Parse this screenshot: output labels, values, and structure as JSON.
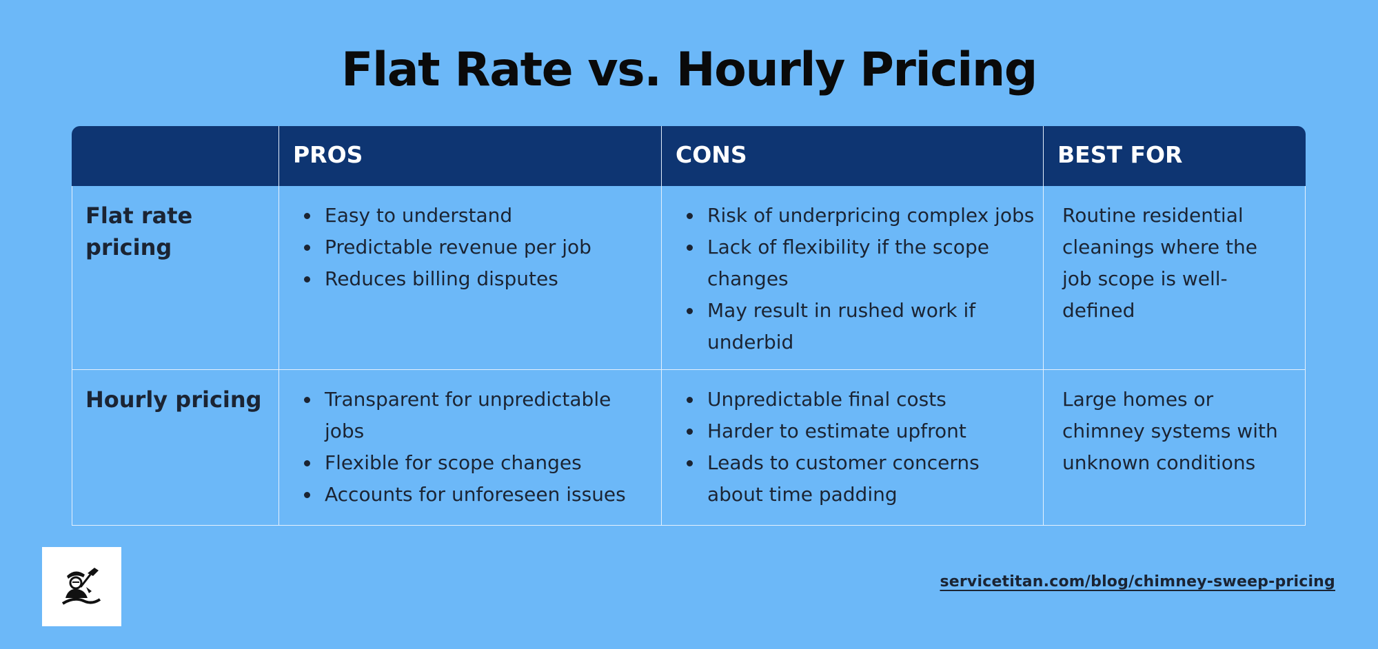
{
  "title": "Flat Rate vs. Hourly Pricing",
  "table": {
    "headers": [
      "",
      "PROS",
      "CONS",
      "BEST FOR"
    ],
    "rows": [
      {
        "label": "Flat rate pricing",
        "pros": [
          "Easy to understand",
          "Predictable revenue per job",
          "Reduces billing disputes"
        ],
        "cons": [
          "Risk of underpricing complex jobs",
          "Lack of flexibility if the scope changes",
          "May result in rushed work if underbid"
        ],
        "best_for": "Routine residential cleanings where the job scope is well-defined"
      },
      {
        "label": "Hourly pricing",
        "pros": [
          "Transparent for unpredictable jobs",
          "Flexible for scope changes",
          "Accounts for unforeseen issues"
        ],
        "cons": [
          "Unpredictable final costs",
          "Harder to estimate upfront",
          "Leads to customer concerns about time padding"
        ],
        "best_for": "Large homes or chimney systems with unknown conditions"
      }
    ]
  },
  "logo": {
    "icon": "chimney-sweep-logo-icon"
  },
  "source_link": "servicetitan.com/blog/chimney-sweep-pricing",
  "colors": {
    "background": "#6cb8f8",
    "header": "#0e3572",
    "grid_lines": "#e6f1fd",
    "text": "#1b2433"
  }
}
